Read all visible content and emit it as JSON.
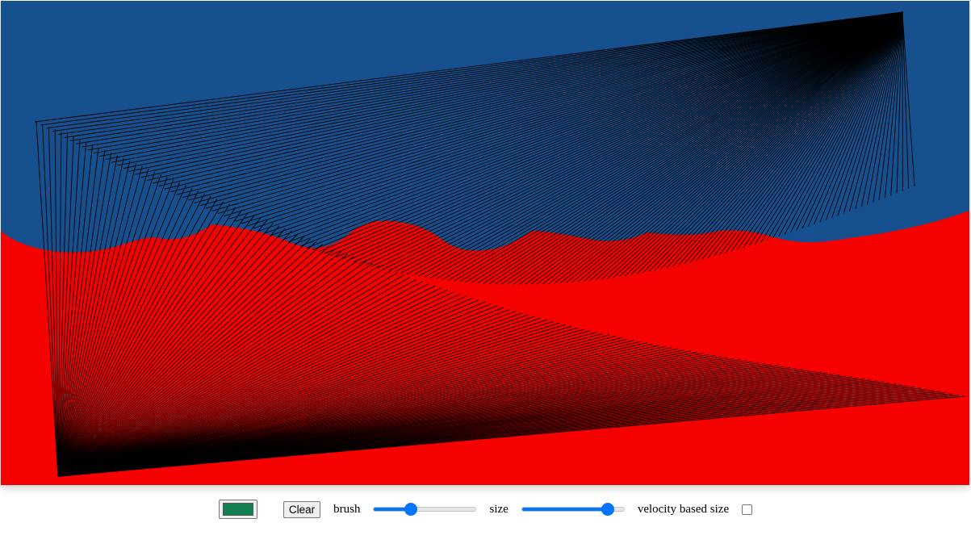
{
  "canvas": {
    "background_top_color": "#17508e",
    "background_bottom_color": "#f60000",
    "stroke_color": "#000000"
  },
  "toolbar": {
    "color_value": "#128050",
    "clear_label": "Clear",
    "brush_label": "brush",
    "brush_value": 0.36,
    "size_label": "size",
    "size_value": 0.84,
    "velocity_label": "velocity based size",
    "velocity_checked": false
  }
}
